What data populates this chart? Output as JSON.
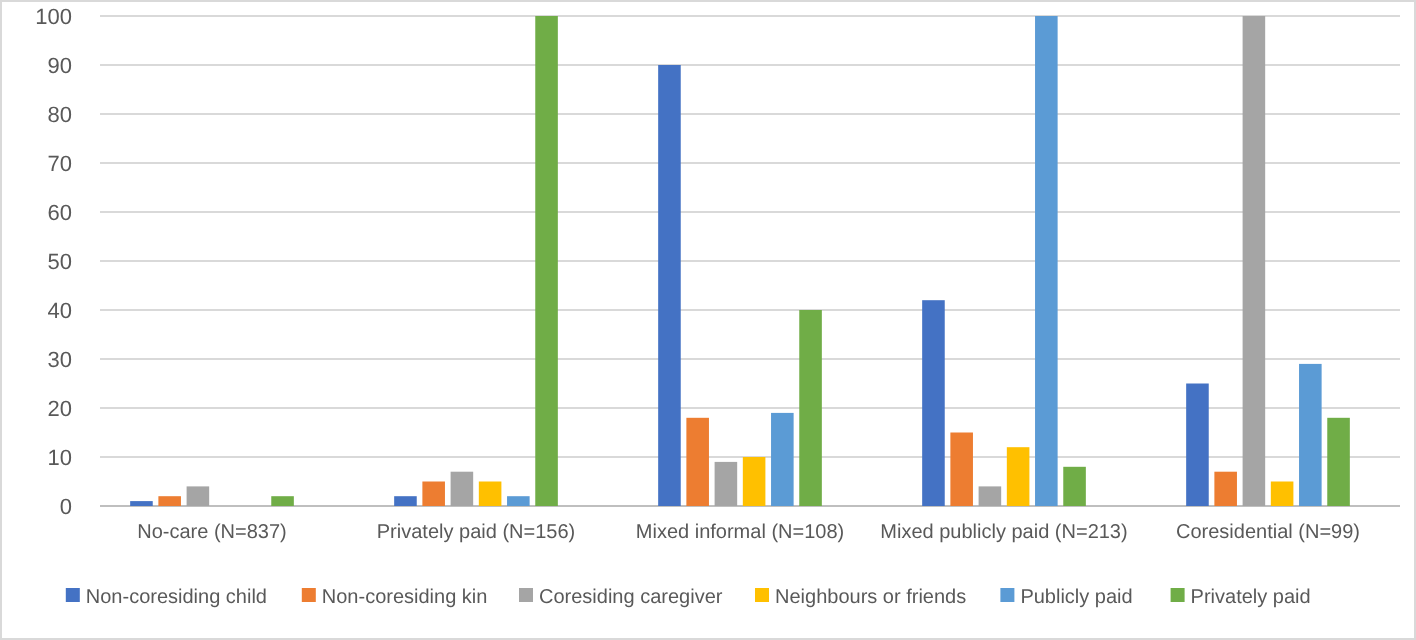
{
  "chart_data": {
    "type": "bar",
    "categories": [
      "No-care (N=837)",
      "Privately paid (N=156)",
      "Mixed informal (N=108)",
      "Mixed publicly paid (N=213)",
      "Coresidential (N=99)"
    ],
    "series": [
      {
        "name": "Non-coresiding child",
        "color": "#4472c4",
        "values": [
          1,
          2,
          90,
          42,
          25
        ]
      },
      {
        "name": "Non-coresiding kin",
        "color": "#ed7d31",
        "values": [
          2,
          5,
          18,
          15,
          7
        ]
      },
      {
        "name": "Coresiding caregiver",
        "color": "#a5a5a5",
        "values": [
          4,
          7,
          9,
          4,
          100
        ]
      },
      {
        "name": "Neighbours or friends",
        "color": "#ffc000",
        "values": [
          0,
          5,
          10,
          12,
          5
        ]
      },
      {
        "name": "Publicly paid",
        "color": "#5b9bd5",
        "values": [
          0,
          2,
          19,
          100,
          29
        ]
      },
      {
        "name": "Privately paid",
        "color": "#70ad47",
        "values": [
          2,
          100,
          40,
          8,
          18
        ]
      }
    ],
    "ylim": [
      0,
      100
    ],
    "yticks": [
      0,
      10,
      20,
      30,
      40,
      50,
      60,
      70,
      80,
      90,
      100
    ],
    "grid": "y",
    "legend": "bottom"
  }
}
